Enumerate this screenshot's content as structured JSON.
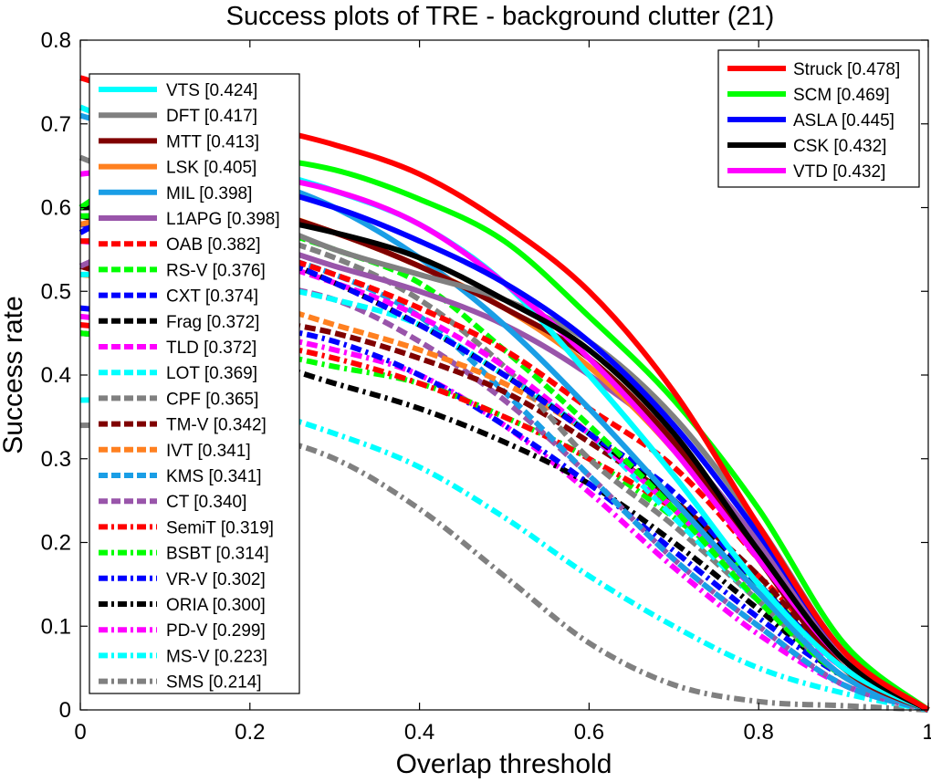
{
  "chart_data": {
    "type": "line",
    "title": "Success plots of TRE - background clutter (21)",
    "xlabel": "Overlap threshold",
    "ylabel": "Success rate",
    "xlim": [
      0,
      1
    ],
    "ylim": [
      0,
      0.8
    ],
    "x_ticks": [
      0,
      0.2,
      0.4,
      0.6,
      0.8,
      1
    ],
    "x_tick_labels": [
      "0",
      "0.2",
      "0.4",
      "0.6",
      "0.8",
      "1"
    ],
    "y_ticks": [
      0,
      0.1,
      0.2,
      0.3,
      0.4,
      0.5,
      0.6,
      0.7,
      0.8
    ],
    "y_tick_labels": [
      "0",
      "0.1",
      "0.2",
      "0.3",
      "0.4",
      "0.5",
      "0.6",
      "0.7",
      "0.8"
    ],
    "grid": false,
    "legend_placement": [
      "top-left",
      "top-right"
    ],
    "x": [
      0,
      0.1,
      0.2,
      0.3,
      0.4,
      0.5,
      0.6,
      0.7,
      0.8,
      0.9,
      1.0
    ],
    "series": [
      {
        "name": "Struck",
        "label": "Struck [0.478]",
        "color": "#ff0000",
        "style": "solid",
        "legend": "right",
        "values": [
          0.755,
          0.725,
          0.7,
          0.675,
          0.64,
          0.58,
          0.5,
          0.38,
          0.22,
          0.07,
          0.0
        ]
      },
      {
        "name": "SCM",
        "label": "SCM [0.469]",
        "color": "#00ff00",
        "style": "solid",
        "legend": "right",
        "values": [
          0.6,
          0.66,
          0.66,
          0.645,
          0.61,
          0.56,
          0.47,
          0.37,
          0.24,
          0.08,
          0.0
        ]
      },
      {
        "name": "ASLA",
        "label": "ASLA [0.445]",
        "color": "#0000ff",
        "style": "solid",
        "legend": "right",
        "values": [
          0.57,
          0.62,
          0.625,
          0.6,
          0.56,
          0.51,
          0.44,
          0.34,
          0.21,
          0.07,
          0.0
        ]
      },
      {
        "name": "CSK",
        "label": "CSK [0.432]",
        "color": "#000000",
        "style": "solid",
        "legend": "right",
        "values": [
          0.6,
          0.6,
          0.59,
          0.57,
          0.54,
          0.49,
          0.43,
          0.33,
          0.19,
          0.06,
          0.0
        ]
      },
      {
        "name": "VTD",
        "label": "VTD [0.432]",
        "color": "#ff00ff",
        "style": "solid",
        "legend": "right",
        "values": [
          0.64,
          0.65,
          0.64,
          0.62,
          0.58,
          0.51,
          0.42,
          0.31,
          0.18,
          0.06,
          0.0
        ]
      },
      {
        "name": "VTS",
        "label": "VTS [0.424]",
        "color": "#00ffff",
        "style": "solid",
        "legend": "left",
        "values": [
          0.72,
          0.68,
          0.65,
          0.62,
          0.58,
          0.51,
          0.4,
          0.28,
          0.15,
          0.05,
          0.0
        ]
      },
      {
        "name": "DFT",
        "label": "DFT [0.417]",
        "color": "#808080",
        "style": "solid",
        "legend": "left",
        "values": [
          0.66,
          0.62,
          0.59,
          0.55,
          0.52,
          0.49,
          0.44,
          0.35,
          0.22,
          0.07,
          0.0
        ]
      },
      {
        "name": "MTT",
        "label": "MTT [0.413]",
        "color": "#800000",
        "style": "solid",
        "legend": "left",
        "values": [
          0.6,
          0.61,
          0.6,
          0.57,
          0.53,
          0.48,
          0.42,
          0.32,
          0.18,
          0.05,
          0.0
        ]
      },
      {
        "name": "LSK",
        "label": "LSK [0.405]",
        "color": "#ff8020",
        "style": "solid",
        "legend": "left",
        "values": [
          0.58,
          0.6,
          0.6,
          0.57,
          0.53,
          0.48,
          0.41,
          0.31,
          0.18,
          0.05,
          0.0
        ]
      },
      {
        "name": "MIL",
        "label": "MIL [0.398]",
        "color": "#1a9ee6",
        "style": "solid",
        "legend": "left",
        "values": [
          0.71,
          0.68,
          0.64,
          0.6,
          0.54,
          0.46,
          0.36,
          0.25,
          0.14,
          0.04,
          0.0
        ]
      },
      {
        "name": "L1APG",
        "label": "L1APG [0.398]",
        "color": "#9955aa",
        "style": "solid",
        "legend": "left",
        "values": [
          0.53,
          0.57,
          0.56,
          0.53,
          0.5,
          0.46,
          0.4,
          0.32,
          0.2,
          0.06,
          0.0
        ]
      },
      {
        "name": "OAB",
        "label": "OAB [0.382]",
        "color": "#ff0000",
        "style": "dash",
        "legend": "left",
        "values": [
          0.56,
          0.56,
          0.55,
          0.52,
          0.48,
          0.43,
          0.36,
          0.29,
          0.18,
          0.06,
          0.0
        ]
      },
      {
        "name": "RS-V",
        "label": "RS-V [0.376]",
        "color": "#00ff00",
        "style": "dash",
        "legend": "left",
        "values": [
          0.59,
          0.59,
          0.58,
          0.55,
          0.51,
          0.43,
          0.34,
          0.24,
          0.13,
          0.04,
          0.0
        ]
      },
      {
        "name": "CXT",
        "label": "CXT [0.374]",
        "color": "#0000ff",
        "style": "dash",
        "legend": "left",
        "values": [
          0.58,
          0.56,
          0.55,
          0.51,
          0.46,
          0.4,
          0.33,
          0.26,
          0.15,
          0.05,
          0.0
        ]
      },
      {
        "name": "Frag",
        "label": "Frag [0.372]",
        "color": "#000000",
        "style": "dash",
        "legend": "left",
        "values": [
          0.59,
          0.57,
          0.55,
          0.51,
          0.46,
          0.4,
          0.33,
          0.25,
          0.15,
          0.05,
          0.0
        ]
      },
      {
        "name": "TLD",
        "label": "TLD [0.372]",
        "color": "#ff00ff",
        "style": "dash",
        "legend": "left",
        "values": [
          0.56,
          0.55,
          0.54,
          0.51,
          0.47,
          0.41,
          0.33,
          0.24,
          0.14,
          0.05,
          0.0
        ]
      },
      {
        "name": "LOT",
        "label": "LOT [0.369]",
        "color": "#00ffff",
        "style": "dash",
        "legend": "left",
        "values": [
          0.52,
          0.52,
          0.51,
          0.49,
          0.46,
          0.4,
          0.33,
          0.23,
          0.13,
          0.04,
          0.0
        ]
      },
      {
        "name": "CPF",
        "label": "CPF [0.365]",
        "color": "#808080",
        "style": "dash",
        "legend": "left",
        "values": [
          0.58,
          0.58,
          0.57,
          0.54,
          0.49,
          0.41,
          0.3,
          0.22,
          0.13,
          0.04,
          0.0
        ]
      },
      {
        "name": "TM-V",
        "label": "TM-V [0.342]",
        "color": "#800000",
        "style": "dash",
        "legend": "left",
        "values": [
          0.53,
          0.5,
          0.47,
          0.45,
          0.42,
          0.38,
          0.32,
          0.25,
          0.16,
          0.05,
          0.0
        ]
      },
      {
        "name": "IVT",
        "label": "IVT [0.341]",
        "color": "#ff8020",
        "style": "dash",
        "legend": "left",
        "values": [
          0.52,
          0.51,
          0.49,
          0.46,
          0.43,
          0.39,
          0.33,
          0.24,
          0.14,
          0.04,
          0.0
        ]
      },
      {
        "name": "KMS",
        "label": "KMS [0.341]",
        "color": "#1a9ee6",
        "style": "dash",
        "legend": "left",
        "values": [
          0.58,
          0.57,
          0.55,
          0.52,
          0.47,
          0.38,
          0.28,
          0.18,
          0.1,
          0.03,
          0.0
        ]
      },
      {
        "name": "CT",
        "label": "CT [0.340]",
        "color": "#9955aa",
        "style": "dash",
        "legend": "left",
        "values": [
          0.53,
          0.52,
          0.51,
          0.49,
          0.44,
          0.37,
          0.28,
          0.18,
          0.1,
          0.03,
          0.0
        ]
      },
      {
        "name": "SemiT",
        "label": "SemiT [0.319]",
        "color": "#ff0000",
        "style": "dashdot",
        "legend": "left",
        "values": [
          0.46,
          0.45,
          0.44,
          0.42,
          0.39,
          0.35,
          0.3,
          0.24,
          0.16,
          0.06,
          0.0
        ]
      },
      {
        "name": "BSBT",
        "label": "BSBT [0.314]",
        "color": "#00ff00",
        "style": "dashdot",
        "legend": "left",
        "values": [
          0.45,
          0.44,
          0.43,
          0.41,
          0.39,
          0.35,
          0.3,
          0.23,
          0.15,
          0.05,
          0.0
        ]
      },
      {
        "name": "VR-V",
        "label": "VR-V [0.302]",
        "color": "#0000ff",
        "style": "dashdot",
        "legend": "left",
        "values": [
          0.48,
          0.47,
          0.46,
          0.44,
          0.4,
          0.34,
          0.27,
          0.19,
          0.11,
          0.04,
          0.0
        ]
      },
      {
        "name": "ORIA",
        "label": "ORIA [0.300]",
        "color": "#000000",
        "style": "dashdot",
        "legend": "left",
        "values": [
          0.45,
          0.44,
          0.42,
          0.39,
          0.36,
          0.32,
          0.27,
          0.2,
          0.12,
          0.04,
          0.0
        ]
      },
      {
        "name": "PD-V",
        "label": "PD-V [0.299]",
        "color": "#ff00ff",
        "style": "dashdot",
        "legend": "left",
        "values": [
          0.47,
          0.46,
          0.45,
          0.43,
          0.4,
          0.34,
          0.26,
          0.17,
          0.09,
          0.03,
          0.0
        ]
      },
      {
        "name": "MS-V",
        "label": "MS-V [0.223]",
        "color": "#00ffff",
        "style": "dashdot",
        "legend": "left",
        "values": [
          0.37,
          0.37,
          0.36,
          0.33,
          0.29,
          0.23,
          0.16,
          0.1,
          0.05,
          0.02,
          0.0
        ]
      },
      {
        "name": "SMS",
        "label": "SMS [0.214]",
        "color": "#808080",
        "style": "dashdot",
        "legend": "left",
        "values": [
          0.34,
          0.34,
          0.33,
          0.3,
          0.24,
          0.16,
          0.08,
          0.03,
          0.01,
          0.005,
          0.0
        ]
      }
    ]
  }
}
